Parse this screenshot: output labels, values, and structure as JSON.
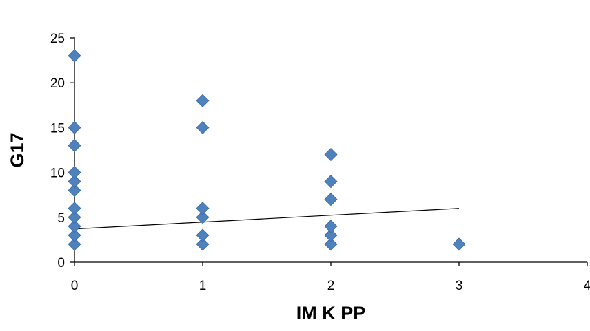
{
  "chart_data": {
    "type": "scatter",
    "title": "",
    "xlabel": "IM K  PP",
    "ylabel": "G17",
    "xlim": [
      0,
      4
    ],
    "ylim": [
      0,
      25
    ],
    "xticks": [
      "0",
      "1",
      "2",
      "3",
      "4"
    ],
    "yticks": [
      "0",
      "5",
      "10",
      "15",
      "20",
      "25"
    ],
    "grid": false,
    "legend": "none",
    "marker_color": "#4F81BD",
    "points": [
      {
        "x": 0,
        "y": 2
      },
      {
        "x": 0,
        "y": 3
      },
      {
        "x": 0,
        "y": 4
      },
      {
        "x": 0,
        "y": 5
      },
      {
        "x": 0,
        "y": 6
      },
      {
        "x": 0,
        "y": 8
      },
      {
        "x": 0,
        "y": 9
      },
      {
        "x": 0,
        "y": 10
      },
      {
        "x": 0,
        "y": 13
      },
      {
        "x": 0,
        "y": 15
      },
      {
        "x": 0,
        "y": 23
      },
      {
        "x": 1,
        "y": 2
      },
      {
        "x": 1,
        "y": 3
      },
      {
        "x": 1,
        "y": 5
      },
      {
        "x": 1,
        "y": 6
      },
      {
        "x": 1,
        "y": 15
      },
      {
        "x": 1,
        "y": 18
      },
      {
        "x": 2,
        "y": 2
      },
      {
        "x": 2,
        "y": 3
      },
      {
        "x": 2,
        "y": 4
      },
      {
        "x": 2,
        "y": 7
      },
      {
        "x": 2,
        "y": 9
      },
      {
        "x": 2,
        "y": 12
      },
      {
        "x": 3,
        "y": 2
      }
    ],
    "trendline": {
      "x": [
        0,
        3
      ],
      "y": [
        3.7,
        6.0
      ]
    }
  }
}
